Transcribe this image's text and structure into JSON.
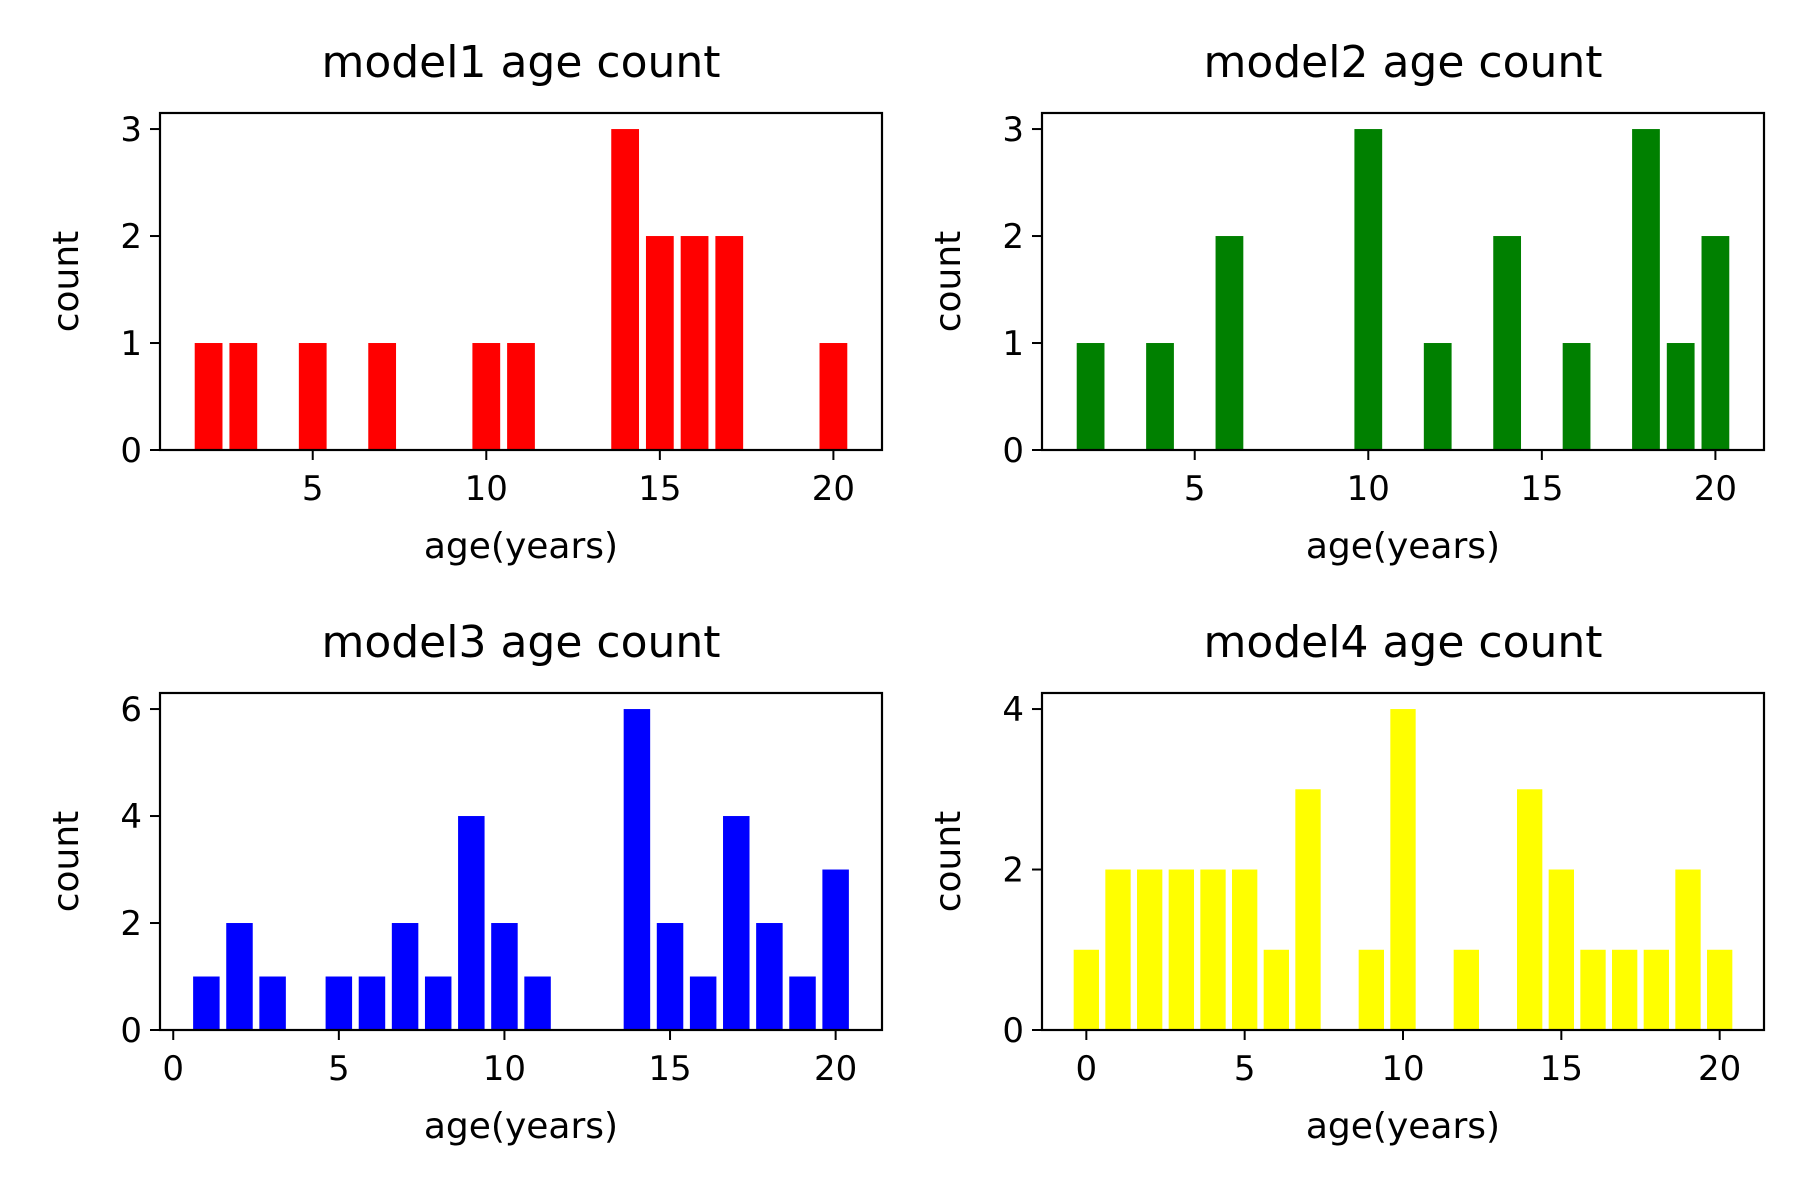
{
  "chart_data": [
    {
      "type": "bar",
      "title": "model1 age count",
      "xlabel": "age(years)",
      "ylabel": "count",
      "color": "#ff0000",
      "x": [
        2,
        3,
        5,
        7,
        10,
        11,
        14,
        15,
        16,
        17,
        20
      ],
      "values": [
        1,
        1,
        1,
        1,
        1,
        1,
        3,
        2,
        2,
        2,
        1
      ],
      "xlim": [
        0.6,
        21.4
      ],
      "ylim": [
        0,
        3.15
      ],
      "xticks": [
        5,
        10,
        15,
        20
      ],
      "yticks": [
        0,
        1,
        2,
        3
      ],
      "grid": false
    },
    {
      "type": "bar",
      "title": "model2 age count",
      "xlabel": "age(years)",
      "ylabel": "count",
      "color": "#008000",
      "x": [
        2,
        4,
        6,
        10,
        12,
        14,
        16,
        18,
        19,
        20
      ],
      "values": [
        1,
        1,
        2,
        3,
        1,
        2,
        1,
        3,
        1,
        2
      ],
      "xlim": [
        0.6,
        21.4
      ],
      "ylim": [
        0,
        3.15
      ],
      "xticks": [
        5,
        10,
        15,
        20
      ],
      "yticks": [
        0,
        1,
        2,
        3
      ],
      "grid": false
    },
    {
      "type": "bar",
      "title": "model3 age count",
      "xlabel": "age(years)",
      "ylabel": "count",
      "color": "#0000ff",
      "x": [
        1,
        2,
        3,
        5,
        6,
        7,
        8,
        9,
        10,
        11,
        14,
        15,
        16,
        17,
        18,
        19,
        20
      ],
      "values": [
        1,
        2,
        1,
        1,
        1,
        2,
        1,
        4,
        2,
        1,
        6,
        2,
        1,
        4,
        2,
        1,
        3
      ],
      "xlim": [
        -0.4,
        21.4
      ],
      "ylim": [
        0,
        6.3
      ],
      "xticks": [
        0,
        5,
        10,
        15,
        20
      ],
      "yticks": [
        0,
        2,
        4,
        6
      ],
      "grid": false
    },
    {
      "type": "bar",
      "title": "model4 age count",
      "xlabel": "age(years)",
      "ylabel": "count",
      "color": "#ffff00",
      "x": [
        0,
        1,
        2,
        3,
        4,
        5,
        6,
        7,
        9,
        10,
        12,
        14,
        15,
        16,
        17,
        18,
        19,
        20
      ],
      "values": [
        1,
        2,
        2,
        2,
        2,
        2,
        1,
        3,
        1,
        4,
        1,
        3,
        2,
        1,
        1,
        1,
        2,
        1
      ],
      "xlim": [
        -1.4,
        21.4
      ],
      "ylim": [
        0,
        4.2
      ],
      "xticks": [
        0,
        5,
        10,
        15,
        20
      ],
      "yticks": [
        0,
        2,
        4
      ],
      "grid": false
    }
  ]
}
